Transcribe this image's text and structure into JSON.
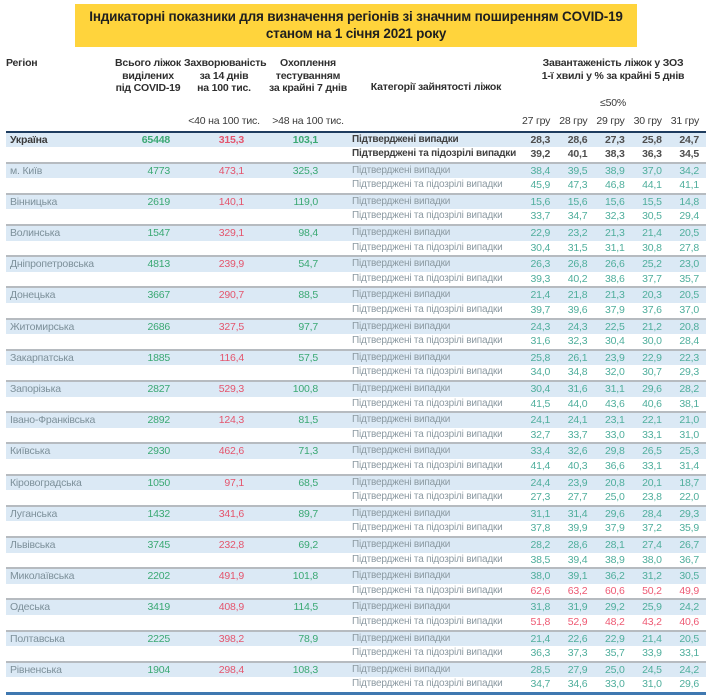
{
  "title": {
    "line1": "Індикаторні показники для визначення регіонів зі значним поширенням COVID-19",
    "line2": "станом на 1 січня 2021 року"
  },
  "colors": {
    "title_highlight": "#ffd43c",
    "row_alt_background": "#dbe9f5",
    "positive_green": "#3aa873",
    "occupancy_teal": "#4fae9c",
    "alert_red": "#e4556d",
    "header_border_navy": "#1e3c5f",
    "bottom_border_blue": "#3f78b0"
  },
  "table": {
    "headers": {
      "region": "Регіон",
      "beds": "Всього ліжок\nвиділених\nпід COVID-19",
      "incidence": "Захворюваність\nза 14 днів\nна 100 тис.",
      "incidence_threshold": "<40 на 100 тис.",
      "testing": "Охоплення\nтестуванням\nза крайні 7 днів",
      "testing_threshold": ">48 на 100 тис.",
      "category": "Категорії зайнятості ліжок",
      "occupancy": "Завантаженість ліжок у ЗОЗ\n1-ї хвилі у % за крайні 5 днів",
      "occupancy_threshold": "≤50%",
      "dates": [
        "27 гру",
        "28 гру",
        "29 гру",
        "30 гру",
        "31 гру"
      ]
    },
    "row_labels": {
      "confirmed": "Підтверджені випадки",
      "confirmed_suspected": "Підтверджені та підозрілі випадки"
    },
    "rows": [
      {
        "region": "Україна",
        "beds": "65448",
        "incidence": "315,3",
        "testing": "103,1",
        "confirmed": [
          "28,3",
          "28,6",
          "27,3",
          "25,8",
          "24,7"
        ],
        "suspected": [
          "39,2",
          "40,1",
          "38,3",
          "36,3",
          "34,5"
        ],
        "emphasis": true,
        "suspected_alert": false
      },
      {
        "region": "м. Київ",
        "beds": "4773",
        "incidence": "473,1",
        "testing": "325,3",
        "confirmed": [
          "38,4",
          "39,5",
          "38,9",
          "37,0",
          "34,2"
        ],
        "suspected": [
          "45,9",
          "47,3",
          "46,8",
          "44,1",
          "41,1"
        ],
        "emphasis": false,
        "suspected_alert": false
      },
      {
        "region": "Вінницька",
        "beds": "2619",
        "incidence": "140,1",
        "testing": "119,0",
        "confirmed": [
          "15,6",
          "15,6",
          "15,6",
          "15,5",
          "14,8"
        ],
        "suspected": [
          "33,7",
          "34,7",
          "32,3",
          "30,5",
          "29,4"
        ],
        "emphasis": false,
        "suspected_alert": false
      },
      {
        "region": "Волинська",
        "beds": "1547",
        "incidence": "329,1",
        "testing": "98,4",
        "confirmed": [
          "22,9",
          "23,2",
          "21,3",
          "21,4",
          "20,5"
        ],
        "suspected": [
          "30,4",
          "31,5",
          "31,1",
          "30,8",
          "27,8"
        ],
        "emphasis": false,
        "suspected_alert": false
      },
      {
        "region": "Дніпропетровська",
        "beds": "4813",
        "incidence": "239,9",
        "testing": "54,7",
        "confirmed": [
          "26,3",
          "26,8",
          "26,6",
          "25,2",
          "23,0"
        ],
        "suspected": [
          "39,3",
          "40,2",
          "38,6",
          "37,7",
          "35,7"
        ],
        "emphasis": false,
        "suspected_alert": false
      },
      {
        "region": "Донецька",
        "beds": "3667",
        "incidence": "290,7",
        "testing": "88,5",
        "confirmed": [
          "21,4",
          "21,8",
          "21,3",
          "20,3",
          "20,5"
        ],
        "suspected": [
          "39,7",
          "39,6",
          "37,9",
          "37,6",
          "37,0"
        ],
        "emphasis": false,
        "suspected_alert": false
      },
      {
        "region": "Житомирська",
        "beds": "2686",
        "incidence": "327,5",
        "testing": "97,7",
        "confirmed": [
          "24,3",
          "24,3",
          "22,5",
          "21,2",
          "20,8"
        ],
        "suspected": [
          "31,6",
          "32,3",
          "30,4",
          "30,0",
          "28,4"
        ],
        "emphasis": false,
        "suspected_alert": false
      },
      {
        "region": "Закарпатська",
        "beds": "1885",
        "incidence": "116,4",
        "testing": "57,5",
        "confirmed": [
          "25,8",
          "26,1",
          "23,9",
          "22,9",
          "22,3"
        ],
        "suspected": [
          "34,0",
          "34,8",
          "32,0",
          "30,7",
          "29,3"
        ],
        "emphasis": false,
        "suspected_alert": false
      },
      {
        "region": "Запорізька",
        "beds": "2827",
        "incidence": "529,3",
        "testing": "100,8",
        "confirmed": [
          "30,4",
          "31,6",
          "31,1",
          "29,6",
          "28,2"
        ],
        "suspected": [
          "41,5",
          "44,0",
          "43,6",
          "40,6",
          "38,1"
        ],
        "emphasis": false,
        "suspected_alert": false
      },
      {
        "region": "Івано-Франківська",
        "beds": "2892",
        "incidence": "124,3",
        "testing": "81,5",
        "confirmed": [
          "24,1",
          "24,1",
          "23,1",
          "22,1",
          "21,0"
        ],
        "suspected": [
          "32,7",
          "33,7",
          "33,0",
          "33,1",
          "31,0"
        ],
        "emphasis": false,
        "suspected_alert": false
      },
      {
        "region": "Київська",
        "beds": "2930",
        "incidence": "462,6",
        "testing": "71,3",
        "confirmed": [
          "33,4",
          "32,6",
          "29,8",
          "26,5",
          "25,3"
        ],
        "suspected": [
          "41,4",
          "40,3",
          "36,6",
          "33,1",
          "31,4"
        ],
        "emphasis": false,
        "suspected_alert": false
      },
      {
        "region": "Кіровоградська",
        "beds": "1050",
        "incidence": "97,1",
        "testing": "68,5",
        "confirmed": [
          "24,4",
          "23,9",
          "20,8",
          "20,1",
          "18,7"
        ],
        "suspected": [
          "27,3",
          "27,7",
          "25,0",
          "23,8",
          "22,0"
        ],
        "emphasis": false,
        "suspected_alert": false
      },
      {
        "region": "Луганська",
        "beds": "1432",
        "incidence": "341,6",
        "testing": "89,7",
        "confirmed": [
          "31,1",
          "31,4",
          "29,6",
          "28,4",
          "29,3"
        ],
        "suspected": [
          "37,8",
          "39,9",
          "37,9",
          "37,2",
          "35,9"
        ],
        "emphasis": false,
        "suspected_alert": false
      },
      {
        "region": "Львівська",
        "beds": "3745",
        "incidence": "232,8",
        "testing": "69,2",
        "confirmed": [
          "28,2",
          "28,6",
          "28,1",
          "27,4",
          "26,7"
        ],
        "suspected": [
          "38,5",
          "39,4",
          "38,9",
          "38,0",
          "36,7"
        ],
        "emphasis": false,
        "suspected_alert": false
      },
      {
        "region": "Миколаївська",
        "beds": "2202",
        "incidence": "491,9",
        "testing": "101,8",
        "confirmed": [
          "38,0",
          "39,1",
          "36,2",
          "31,2",
          "30,5"
        ],
        "suspected": [
          "62,6",
          "63,2",
          "60,6",
          "50,2",
          "49,9"
        ],
        "emphasis": false,
        "suspected_alert": true
      },
      {
        "region": "Одеська",
        "beds": "3419",
        "incidence": "408,9",
        "testing": "114,5",
        "confirmed": [
          "31,8",
          "31,9",
          "29,2",
          "25,9",
          "24,2"
        ],
        "suspected": [
          "51,8",
          "52,9",
          "48,2",
          "43,2",
          "40,6"
        ],
        "emphasis": false,
        "suspected_alert": true
      },
      {
        "region": "Полтавська",
        "beds": "2225",
        "incidence": "398,2",
        "testing": "78,9",
        "confirmed": [
          "21,4",
          "22,6",
          "22,9",
          "21,4",
          "20,5"
        ],
        "suspected": [
          "36,3",
          "37,3",
          "35,7",
          "33,9",
          "33,1"
        ],
        "emphasis": false,
        "suspected_alert": false
      },
      {
        "region": "Рівненська",
        "beds": "1904",
        "incidence": "298,4",
        "testing": "108,3",
        "confirmed": [
          "28,5",
          "27,9",
          "25,0",
          "24,5",
          "24,2"
        ],
        "suspected": [
          "34,7",
          "34,6",
          "33,0",
          "31,0",
          "29,6"
        ],
        "emphasis": false,
        "suspected_alert": false
      }
    ]
  }
}
